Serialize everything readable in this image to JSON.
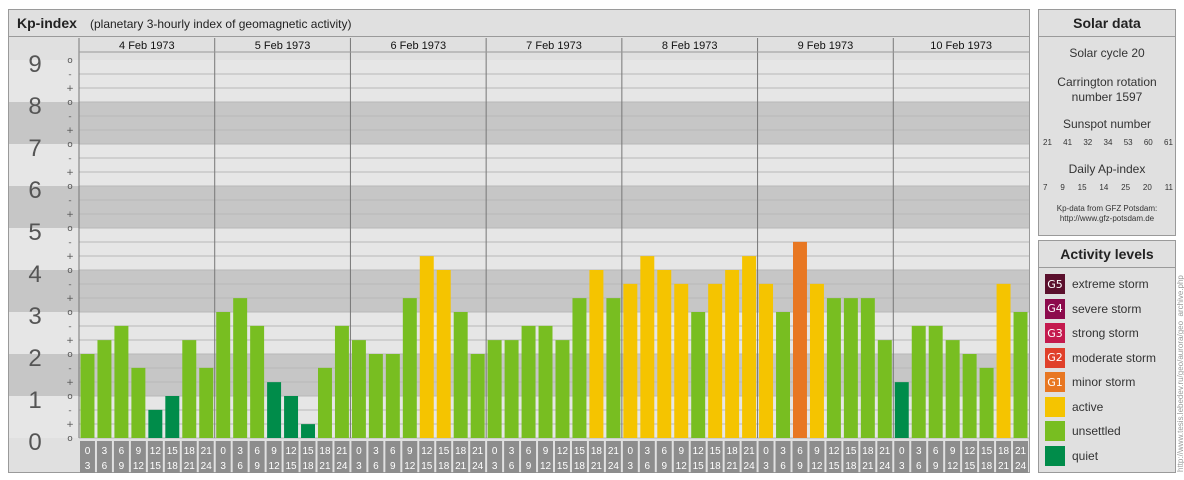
{
  "title": "Kp-index",
  "subtitle": "(planetary 3-hourly index of geomagnetic activity)",
  "chart_data": {
    "type": "bar",
    "ylim": [
      0,
      9
    ],
    "y_ticks": [
      "0",
      "1",
      "2",
      "3",
      "4",
      "5",
      "6",
      "7",
      "8",
      "9"
    ],
    "minor_tick_labels": [
      "+",
      "o",
      "-"
    ],
    "days": [
      "4 Feb 1973",
      "5 Feb 1973",
      "6 Feb 1973",
      "7 Feb 1973",
      "8 Feb 1973",
      "9 Feb 1973",
      "10 Feb 1973"
    ],
    "interval_start": [
      "0",
      "3",
      "6",
      "9",
      "12",
      "15",
      "18",
      "21"
    ],
    "interval_end": [
      "3",
      "6",
      "9",
      "12",
      "15",
      "18",
      "21",
      "24"
    ],
    "values": [
      [
        2.0,
        2.33,
        2.67,
        1.67,
        0.67,
        1.0,
        2.33,
        1.67
      ],
      [
        3.0,
        3.33,
        2.67,
        1.33,
        1.0,
        0.33,
        1.67,
        2.67
      ],
      [
        2.33,
        2.0,
        2.0,
        3.33,
        4.33,
        4.0,
        3.0,
        2.0
      ],
      [
        2.33,
        2.33,
        2.67,
        2.67,
        2.33,
        3.33,
        4.0,
        3.33
      ],
      [
        3.67,
        4.33,
        4.0,
        3.67,
        3.0,
        3.67,
        4.0,
        4.33
      ],
      [
        3.67,
        3.0,
        4.67,
        3.67,
        3.33,
        3.33,
        3.33,
        2.33
      ],
      [
        1.33,
        2.67,
        2.67,
        2.33,
        2.0,
        1.67,
        3.67,
        3.0
      ]
    ]
  },
  "solar": {
    "title": "Solar data",
    "cycle": "Solar cycle 20",
    "carrington_line1": "Carrington rotation",
    "carrington_line2": "number 1597",
    "sunspot_label": "Sunspot number",
    "sunspot_values": [
      "21",
      "41",
      "32",
      "34",
      "53",
      "60",
      "61"
    ],
    "ap_label": "Daily Ap-index",
    "ap_values": [
      "7",
      "9",
      "15",
      "14",
      "25",
      "20",
      "11"
    ],
    "source_line1": "Kp-data from GFZ Potsdam:",
    "source_line2": "http://www.gfz-potsdam.de"
  },
  "activity": {
    "title": "Activity levels",
    "levels": [
      {
        "code": "G5",
        "label": "extreme storm",
        "color": "#5a0f2c"
      },
      {
        "code": "G4",
        "label": "severe storm",
        "color": "#8c0a4c"
      },
      {
        "code": "G3",
        "label": "strong storm",
        "color": "#c41a4e"
      },
      {
        "code": "G2",
        "label": "moderate storm",
        "color": "#e0402a"
      },
      {
        "code": "G1",
        "label": "minor storm",
        "color": "#e87722"
      },
      {
        "code": "",
        "label": "active",
        "color": "#f5c400"
      },
      {
        "code": "",
        "label": "unsettled",
        "color": "#78be21"
      },
      {
        "code": "",
        "label": "quiet",
        "color": "#008c4a"
      }
    ]
  },
  "watermark": "http://www.tesis.lebedev.ru/geo/aurora/geo_archive.php",
  "colors": {
    "quiet": "#008c4a",
    "unsettled": "#78be21",
    "active": "#f5c400",
    "minor_storm": "#e87722",
    "band_dark": "#c6c6c6",
    "band_light": "#e6e6e6",
    "axis_box": "#8d8d8d"
  }
}
